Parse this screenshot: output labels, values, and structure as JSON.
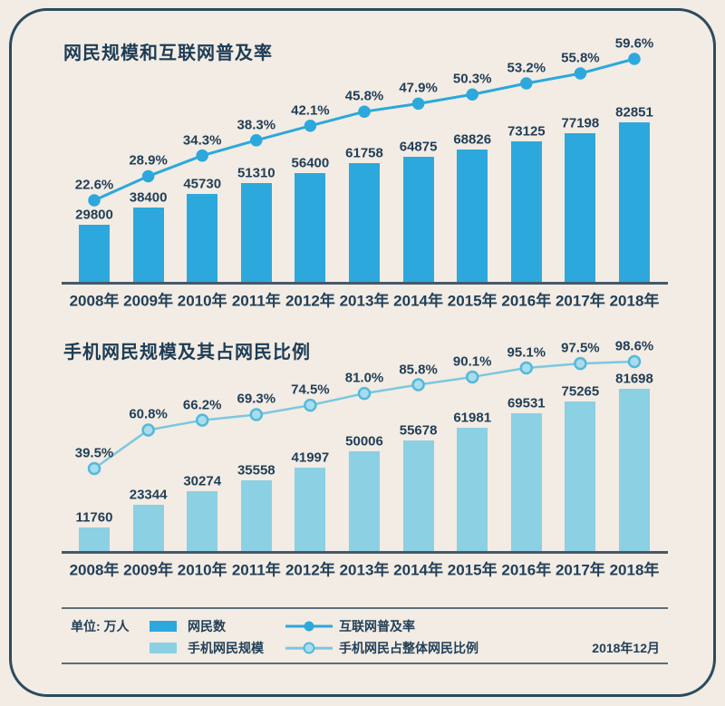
{
  "page": {
    "colors": {
      "background": "#f2ece4",
      "card_border": "#2c4b5e",
      "text": "#223f58",
      "axis": "#46596a"
    }
  },
  "legend": {
    "unit_label": "单位: 万人",
    "date_label": "2018年12月",
    "items": [
      {
        "type": "bar-swatch",
        "label": "网民数",
        "color": "#2ca8dc"
      },
      {
        "type": "bar-swatch",
        "label": "手机网民规模",
        "color": "#8bd0e3"
      },
      {
        "type": "line-sample",
        "label": "互联网普及率",
        "color": "#2ca8dc",
        "marker_fill": "#2ca8dc"
      },
      {
        "type": "line-sample",
        "label": "手机网民占整体网民比例",
        "color": "#7cc7e0",
        "marker_fill": "#a9ddec",
        "marker_stroke": "#54b8dc"
      }
    ]
  },
  "chart_data": [
    {
      "type": "bar",
      "title": "网民规模和互联网普及率",
      "unit": "万人",
      "legend_position": "bottom",
      "grid": false,
      "categories": [
        "2008年",
        "2009年",
        "2010年",
        "2011年",
        "2012年",
        "2013年",
        "2014年",
        "2015年",
        "2016年",
        "2017年",
        "2018年"
      ],
      "series": [
        {
          "name": "网民数",
          "type": "bar",
          "unit": "万人",
          "values": [
            29800,
            38400,
            45730,
            51310,
            56400,
            61758,
            64875,
            68826,
            73125,
            77198,
            82851
          ]
        },
        {
          "name": "互联网普及率",
          "type": "line",
          "unit": "%",
          "values": [
            22.6,
            28.9,
            34.3,
            38.3,
            42.1,
            45.8,
            47.9,
            50.3,
            53.2,
            55.8,
            59.6
          ]
        }
      ],
      "colors": {
        "bar": "#2ca8dc",
        "line": "#2ca8dc",
        "marker_fill": "#2ca8dc",
        "marker_stroke": "#2ca8dc"
      }
    },
    {
      "type": "bar",
      "title": "手机网民规模及其占网民比例",
      "unit": "万人",
      "legend_position": "bottom",
      "grid": false,
      "categories": [
        "2008年",
        "2009年",
        "2010年",
        "2011年",
        "2012年",
        "2013年",
        "2014年",
        "2015年",
        "2016年",
        "2017年",
        "2018年"
      ],
      "series": [
        {
          "name": "手机网民规模",
          "type": "bar",
          "unit": "万人",
          "values": [
            11760,
            23344,
            30274,
            35558,
            41997,
            50006,
            55678,
            61981,
            69531,
            75265,
            81698
          ]
        },
        {
          "name": "手机网民占整体网民比例",
          "type": "line",
          "unit": "%",
          "values": [
            39.5,
            60.8,
            66.2,
            69.3,
            74.5,
            81.0,
            85.8,
            90.1,
            95.1,
            97.5,
            98.6
          ]
        }
      ],
      "colors": {
        "bar": "#8bd0e3",
        "line": "#7cc7e0",
        "marker_fill": "#a9ddec",
        "marker_stroke": "#54b8dc"
      }
    }
  ]
}
